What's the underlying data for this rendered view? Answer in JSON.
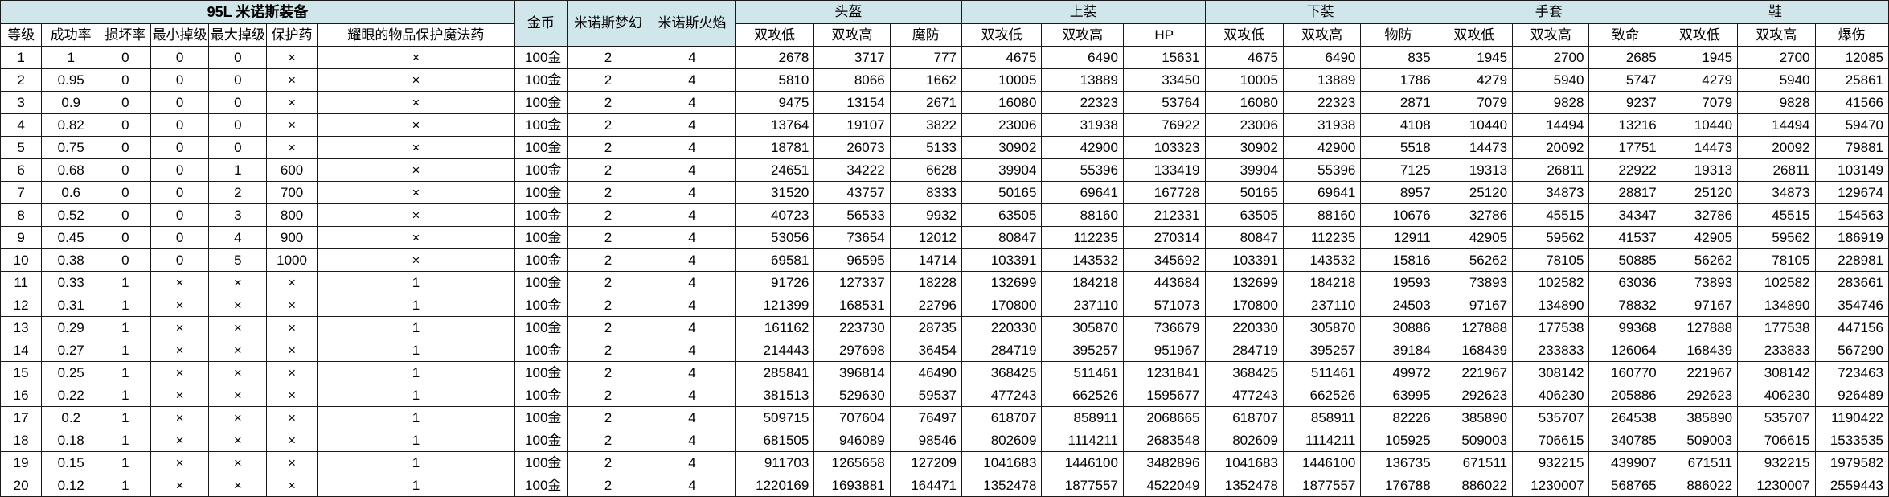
{
  "sheet": {
    "title": "95L 米诺斯装备",
    "top_headers": {
      "gold": "金币",
      "dream": "米诺斯梦幻",
      "flame": "米诺斯火焰"
    },
    "groups": [
      "头盔",
      "上装",
      "下装",
      "手套",
      "鞋"
    ],
    "left_headers": [
      "等级",
      "成功率",
      "损坏率",
      "最小掉级",
      "最大掉级",
      "保护药",
      "耀眼的物品保护魔法药"
    ],
    "sub_headers": [
      [
        "双攻低",
        "双攻高",
        "魔防"
      ],
      [
        "双攻低",
        "双攻高",
        "HP"
      ],
      [
        "双攻低",
        "双攻高",
        "物防"
      ],
      [
        "双攻低",
        "双攻高",
        "致命"
      ],
      [
        "双攻低",
        "双攻高",
        "爆伤"
      ]
    ],
    "rows": [
      [
        "1",
        "1",
        "0",
        "0",
        "0",
        "×",
        "×",
        "100金",
        "2",
        "4",
        "2678",
        "3717",
        "777",
        "4675",
        "6490",
        "15631",
        "4675",
        "6490",
        "835",
        "1945",
        "2700",
        "2685",
        "1945",
        "2700",
        "12085"
      ],
      [
        "2",
        "0.95",
        "0",
        "0",
        "0",
        "×",
        "×",
        "100金",
        "2",
        "4",
        "5810",
        "8066",
        "1662",
        "10005",
        "13889",
        "33450",
        "10005",
        "13889",
        "1786",
        "4279",
        "5940",
        "5747",
        "4279",
        "5940",
        "25861"
      ],
      [
        "3",
        "0.9",
        "0",
        "0",
        "0",
        "×",
        "×",
        "100金",
        "2",
        "4",
        "9475",
        "13154",
        "2671",
        "16080",
        "22323",
        "53764",
        "16080",
        "22323",
        "2871",
        "7079",
        "9828",
        "9237",
        "7079",
        "9828",
        "41566"
      ],
      [
        "4",
        "0.82",
        "0",
        "0",
        "0",
        "×",
        "×",
        "100金",
        "2",
        "4",
        "13764",
        "19107",
        "3822",
        "23006",
        "31938",
        "76922",
        "23006",
        "31938",
        "4108",
        "10440",
        "14494",
        "13216",
        "10440",
        "14494",
        "59470"
      ],
      [
        "5",
        "0.75",
        "0",
        "0",
        "0",
        "×",
        "×",
        "100金",
        "2",
        "4",
        "18781",
        "26073",
        "5133",
        "30902",
        "42900",
        "103323",
        "30902",
        "42900",
        "5518",
        "14473",
        "20092",
        "17751",
        "14473",
        "20092",
        "79881"
      ],
      [
        "6",
        "0.68",
        "0",
        "0",
        "1",
        "600",
        "×",
        "100金",
        "2",
        "4",
        "24651",
        "34222",
        "6628",
        "39904",
        "55396",
        "133419",
        "39904",
        "55396",
        "7125",
        "19313",
        "26811",
        "22922",
        "19313",
        "26811",
        "103149"
      ],
      [
        "7",
        "0.6",
        "0",
        "0",
        "2",
        "700",
        "×",
        "100金",
        "2",
        "4",
        "31520",
        "43757",
        "8333",
        "50165",
        "69641",
        "167728",
        "50165",
        "69641",
        "8957",
        "25120",
        "34873",
        "28817",
        "25120",
        "34873",
        "129674"
      ],
      [
        "8",
        "0.52",
        "0",
        "0",
        "3",
        "800",
        "×",
        "100金",
        "2",
        "4",
        "40723",
        "56533",
        "9932",
        "63505",
        "88160",
        "212331",
        "63505",
        "88160",
        "10676",
        "32786",
        "45515",
        "34347",
        "32786",
        "45515",
        "154563"
      ],
      [
        "9",
        "0.45",
        "0",
        "0",
        "4",
        "900",
        "×",
        "100金",
        "2",
        "4",
        "53056",
        "73654",
        "12012",
        "80847",
        "112235",
        "270314",
        "80847",
        "112235",
        "12911",
        "42905",
        "59562",
        "41537",
        "42905",
        "59562",
        "186919"
      ],
      [
        "10",
        "0.38",
        "0",
        "0",
        "5",
        "1000",
        "×",
        "100金",
        "2",
        "4",
        "69581",
        "96595",
        "14714",
        "103391",
        "143532",
        "345692",
        "103391",
        "143532",
        "15816",
        "56262",
        "78105",
        "50885",
        "56262",
        "78105",
        "228981"
      ],
      [
        "11",
        "0.33",
        "1",
        "×",
        "×",
        "×",
        "1",
        "100金",
        "2",
        "4",
        "91726",
        "127337",
        "18228",
        "132699",
        "184218",
        "443684",
        "132699",
        "184218",
        "19593",
        "73893",
        "102582",
        "63036",
        "73893",
        "102582",
        "283661"
      ],
      [
        "12",
        "0.31",
        "1",
        "×",
        "×",
        "×",
        "1",
        "100金",
        "2",
        "4",
        "121399",
        "168531",
        "22796",
        "170800",
        "237110",
        "571073",
        "170800",
        "237110",
        "24503",
        "97167",
        "134890",
        "78832",
        "97167",
        "134890",
        "354746"
      ],
      [
        "13",
        "0.29",
        "1",
        "×",
        "×",
        "×",
        "1",
        "100金",
        "2",
        "4",
        "161162",
        "223730",
        "28735",
        "220330",
        "305870",
        "736679",
        "220330",
        "305870",
        "30886",
        "127888",
        "177538",
        "99368",
        "127888",
        "177538",
        "447156"
      ],
      [
        "14",
        "0.27",
        "1",
        "×",
        "×",
        "×",
        "1",
        "100金",
        "2",
        "4",
        "214443",
        "297698",
        "36454",
        "284719",
        "395257",
        "951967",
        "284719",
        "395257",
        "39184",
        "168439",
        "233833",
        "126064",
        "168439",
        "233833",
        "567290"
      ],
      [
        "15",
        "0.25",
        "1",
        "×",
        "×",
        "×",
        "1",
        "100金",
        "2",
        "4",
        "285841",
        "396814",
        "46490",
        "368425",
        "511461",
        "1231841",
        "368425",
        "511461",
        "49972",
        "221967",
        "308142",
        "160770",
        "221967",
        "308142",
        "723463"
      ],
      [
        "16",
        "0.22",
        "1",
        "×",
        "×",
        "×",
        "1",
        "100金",
        "2",
        "4",
        "381513",
        "529630",
        "59537",
        "477243",
        "662526",
        "1595677",
        "477243",
        "662526",
        "63995",
        "292623",
        "406230",
        "205886",
        "292623",
        "406230",
        "926489"
      ],
      [
        "17",
        "0.2",
        "1",
        "×",
        "×",
        "×",
        "1",
        "100金",
        "2",
        "4",
        "509715",
        "707604",
        "76497",
        "618707",
        "858911",
        "2068665",
        "618707",
        "858911",
        "82226",
        "385890",
        "535707",
        "264538",
        "385890",
        "535707",
        "1190422"
      ],
      [
        "18",
        "0.18",
        "1",
        "×",
        "×",
        "×",
        "1",
        "100金",
        "2",
        "4",
        "681505",
        "946089",
        "98546",
        "802609",
        "1114211",
        "2683548",
        "802609",
        "1114211",
        "105925",
        "509003",
        "706615",
        "340785",
        "509003",
        "706615",
        "1533535"
      ],
      [
        "19",
        "0.15",
        "1",
        "×",
        "×",
        "×",
        "1",
        "100金",
        "2",
        "4",
        "911703",
        "1265658",
        "127209",
        "1041683",
        "1446100",
        "3482896",
        "1041683",
        "1446100",
        "136735",
        "671511",
        "932215",
        "439907",
        "671511",
        "932215",
        "1979582"
      ],
      [
        "20",
        "0.12",
        "1",
        "×",
        "×",
        "×",
        "1",
        "100金",
        "2",
        "4",
        "1220169",
        "1693881",
        "164471",
        "1352478",
        "1877557",
        "4522049",
        "1352478",
        "1877557",
        "176788",
        "886022",
        "1230007",
        "568765",
        "886022",
        "1230007",
        "2559443"
      ]
    ]
  },
  "colors": {
    "header_bg": "#d0e6ea",
    "cell_bg": "#ffffff",
    "grid": "#1a1a1a"
  }
}
